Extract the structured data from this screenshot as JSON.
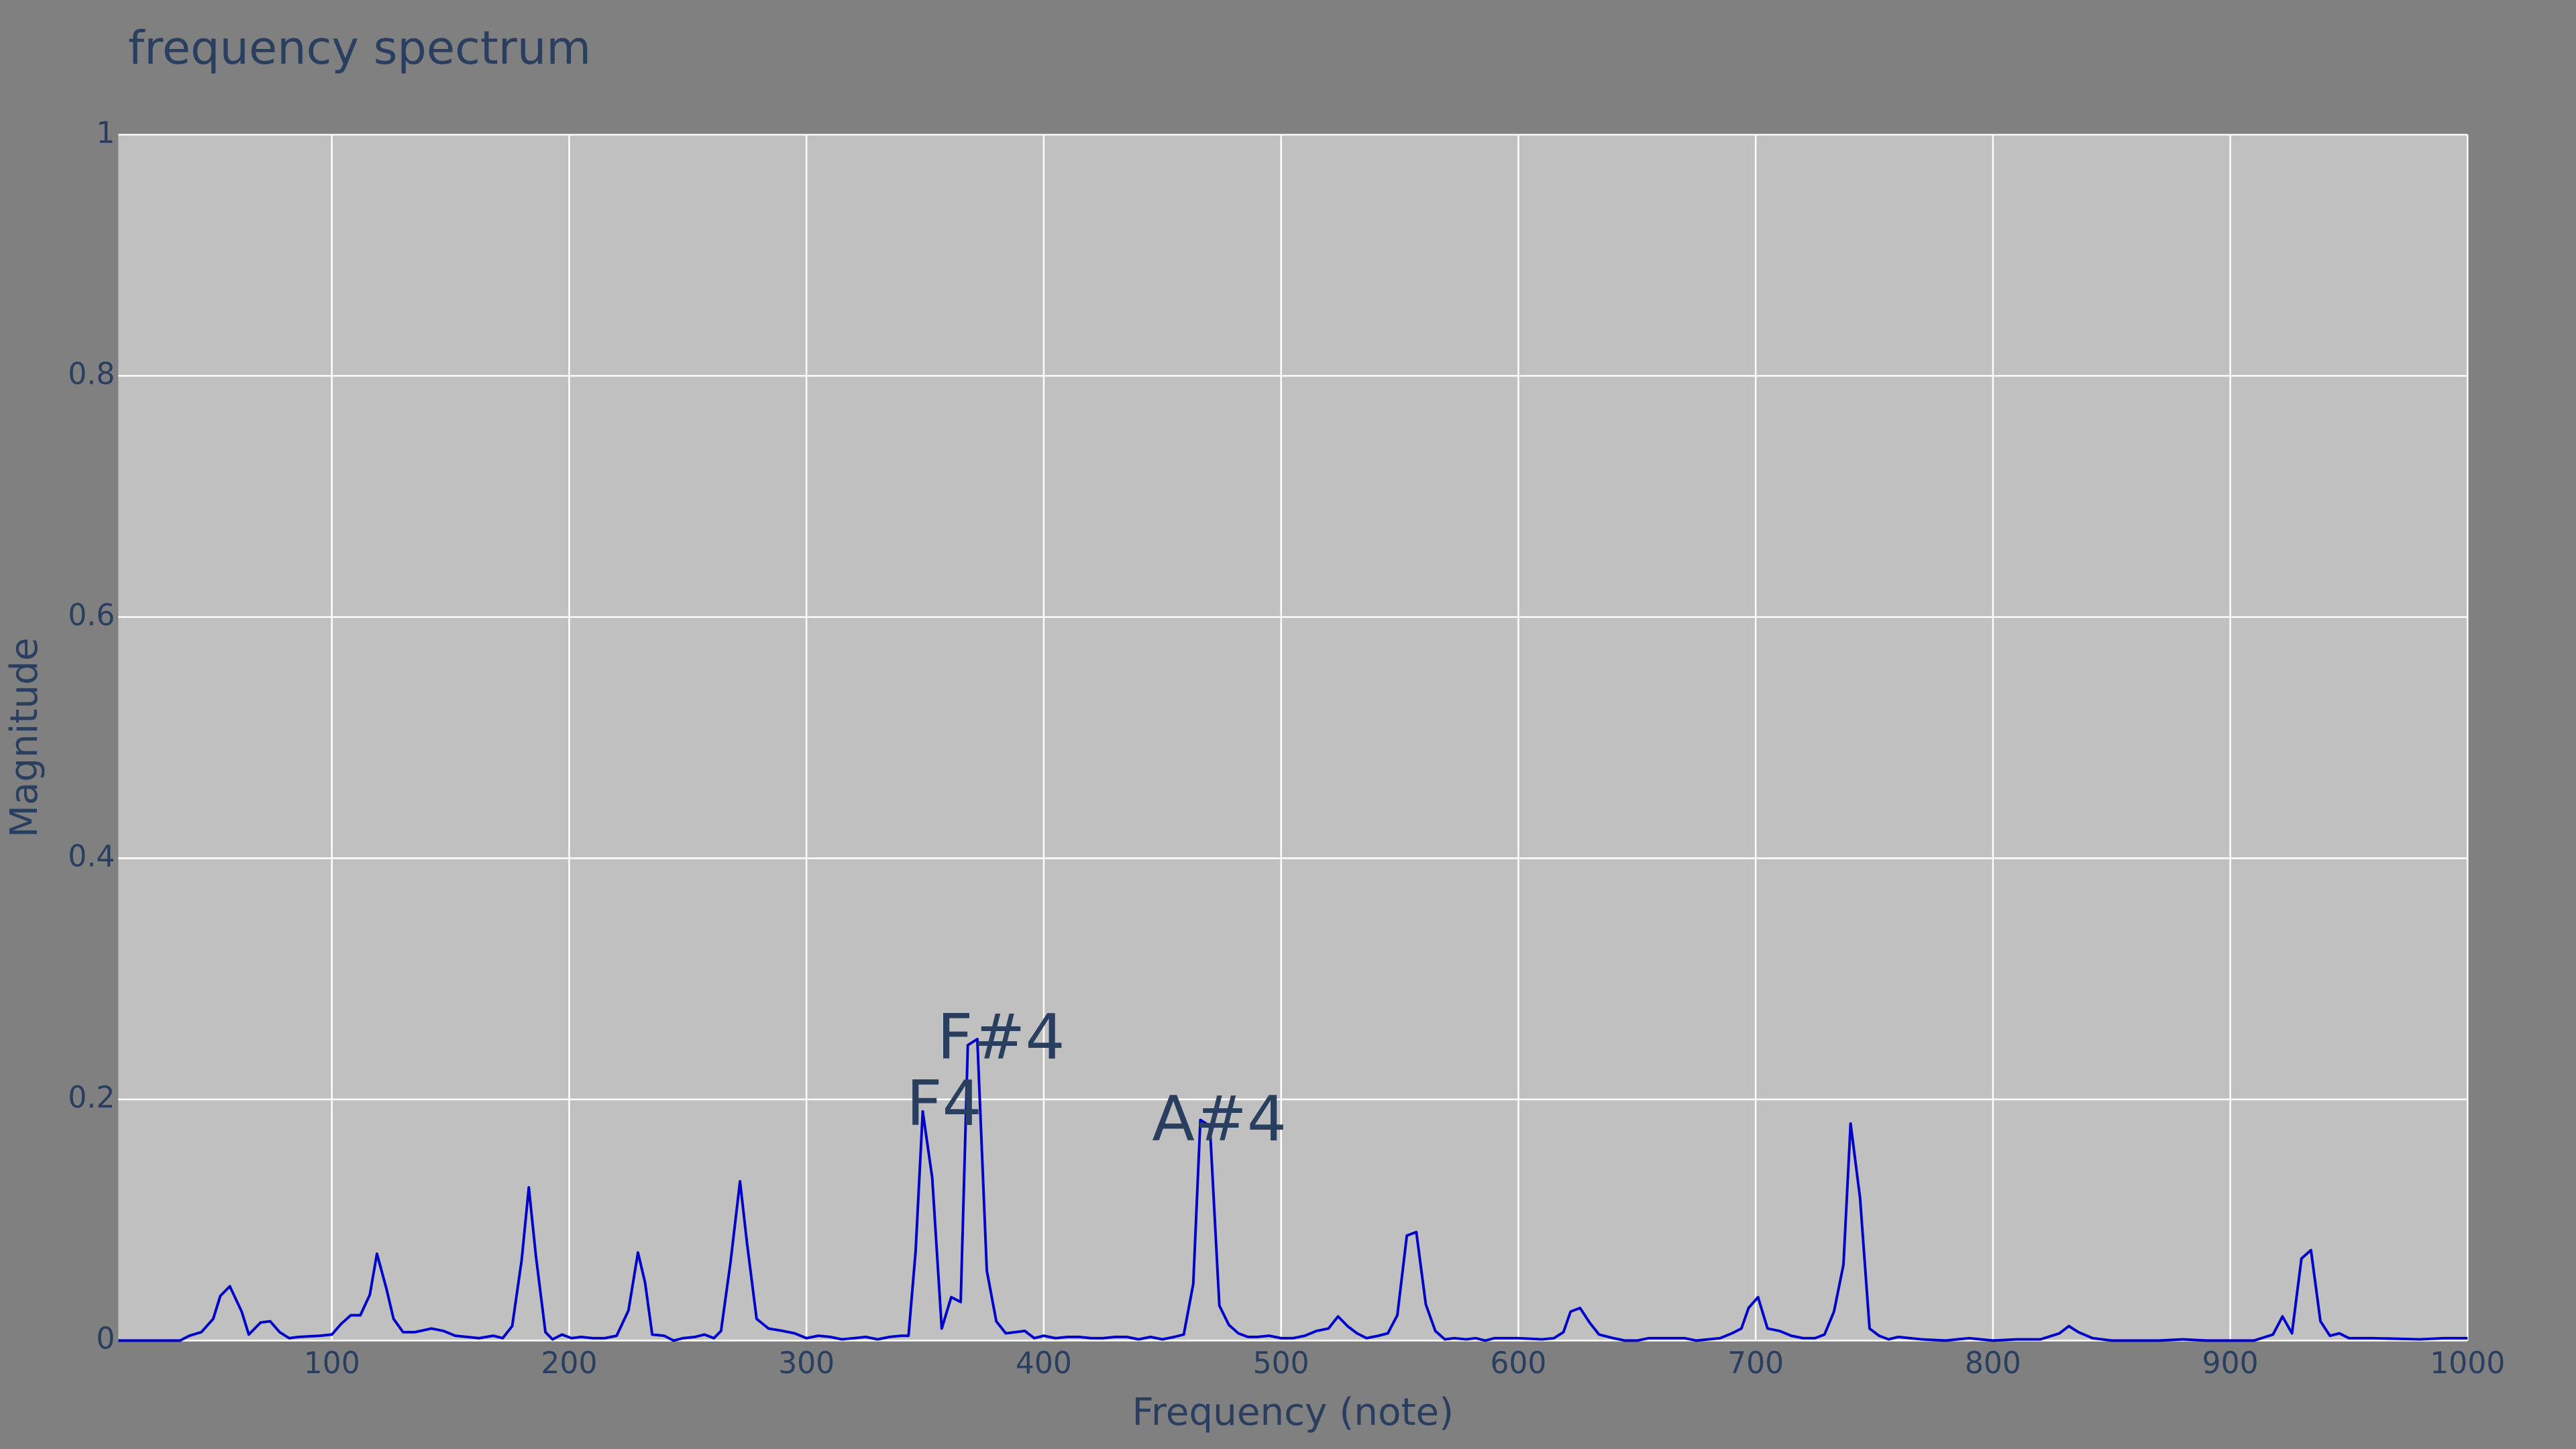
{
  "chart_data": {
    "type": "line",
    "title": "frequency spectrum",
    "x_label": "Frequency (note)",
    "y_label": "Magnitude",
    "color": "#0000cc",
    "grid": true,
    "xlim": [
      10,
      1000
    ],
    "ylim": [
      0,
      1
    ],
    "xticks": [
      100,
      200,
      300,
      400,
      500,
      600,
      700,
      800,
      900,
      1000
    ],
    "yticks": [
      0,
      0.2,
      0.4,
      0.6,
      0.8,
      1
    ],
    "x": [
      10,
      36,
      40,
      45,
      50,
      53,
      57,
      62,
      65,
      70,
      74,
      78,
      82,
      86,
      95,
      100,
      104,
      108,
      112,
      116,
      119,
      123,
      126,
      130,
      135,
      142,
      147,
      152,
      157,
      162,
      168,
      172,
      176,
      180,
      183,
      186,
      190,
      193,
      197,
      201,
      205,
      210,
      215,
      220,
      225,
      229,
      232,
      235,
      240,
      244,
      248,
      253,
      257,
      261,
      264,
      268,
      272,
      275,
      279,
      284,
      290,
      295,
      300,
      305,
      310,
      315,
      320,
      325,
      330,
      335,
      340,
      343,
      346,
      349,
      353,
      357,
      361,
      365,
      368,
      372,
      376,
      380,
      384,
      388,
      392,
      396,
      400,
      405,
      410,
      415,
      420,
      425,
      430,
      435,
      440,
      445,
      450,
      455,
      459,
      463,
      466,
      470,
      474,
      478,
      482,
      486,
      490,
      495,
      500,
      505,
      510,
      515,
      520,
      524,
      528,
      532,
      536,
      541,
      545,
      549,
      553,
      557,
      561,
      565,
      569,
      573,
      578,
      582,
      586,
      590,
      600,
      610,
      615,
      619,
      622,
      626,
      630,
      634,
      640,
      645,
      650,
      655,
      665,
      670,
      675,
      685,
      690,
      694,
      697,
      701,
      705,
      710,
      715,
      720,
      725,
      729,
      733,
      737,
      740,
      744,
      748,
      752,
      756,
      760,
      770,
      780,
      790,
      800,
      810,
      820,
      828,
      832,
      836,
      842,
      850,
      870,
      880,
      890,
      910,
      918,
      922,
      926,
      930,
      934,
      938,
      942,
      946,
      950,
      960,
      980,
      990,
      1000
    ],
    "values": [
      0,
      0,
      0.004,
      0.007,
      0.018,
      0.037,
      0.045,
      0.024,
      0.005,
      0.015,
      0.016,
      0.007,
      0.002,
      0.003,
      0.004,
      0.005,
      0.014,
      0.021,
      0.021,
      0.038,
      0.072,
      0.043,
      0.018,
      0.007,
      0.007,
      0.01,
      0.008,
      0.004,
      0.003,
      0.002,
      0.004,
      0.002,
      0.012,
      0.067,
      0.127,
      0.07,
      0.007,
      0.001,
      0.005,
      0.002,
      0.003,
      0.002,
      0.002,
      0.004,
      0.025,
      0.073,
      0.048,
      0.005,
      0.004,
      0,
      0.002,
      0.003,
      0.005,
      0.002,
      0.008,
      0.065,
      0.132,
      0.08,
      0.018,
      0.01,
      0.008,
      0.006,
      0.002,
      0.004,
      0.003,
      0.001,
      0.002,
      0.003,
      0.001,
      0.003,
      0.004,
      0.004,
      0.074,
      0.19,
      0.135,
      0.01,
      0.036,
      0.032,
      0.245,
      0.25,
      0.058,
      0.016,
      0.006,
      0.007,
      0.008,
      0.002,
      0.004,
      0.002,
      0.003,
      0.003,
      0.002,
      0.002,
      0.003,
      0.003,
      0.001,
      0.003,
      0.001,
      0.003,
      0.005,
      0.047,
      0.183,
      0.178,
      0.029,
      0.013,
      0.006,
      0.003,
      0.003,
      0.004,
      0.002,
      0.002,
      0.004,
      0.008,
      0.01,
      0.02,
      0.012,
      0.006,
      0.002,
      0.004,
      0.006,
      0.021,
      0.087,
      0.09,
      0.03,
      0.008,
      0.001,
      0.002,
      0.001,
      0.002,
      0,
      0.002,
      0.002,
      0.001,
      0.002,
      0.007,
      0.024,
      0.027,
      0.015,
      0.005,
      0.002,
      0,
      0,
      0.002,
      0.002,
      0.002,
      0,
      0.002,
      0.006,
      0.01,
      0.027,
      0.036,
      0.01,
      0.008,
      0.004,
      0.002,
      0.002,
      0.005,
      0.024,
      0.063,
      0.18,
      0.118,
      0.01,
      0.004,
      0.001,
      0.003,
      0.001,
      0,
      0.002,
      0,
      0.001,
      0.001,
      0.006,
      0.012,
      0.007,
      0.002,
      0,
      0,
      0.001,
      0,
      0,
      0.005,
      0.02,
      0.006,
      0.068,
      0.075,
      0.016,
      0.004,
      0.006,
      0.002,
      0.002,
      0.001,
      0.002,
      0.002
    ],
    "annotations": [
      {
        "text": "F4",
        "x": 358,
        "y": 0.193
      },
      {
        "text": "F#4",
        "x": 382,
        "y": 0.248
      },
      {
        "text": "A#4",
        "x": 474,
        "y": 0.18
      }
    ]
  }
}
